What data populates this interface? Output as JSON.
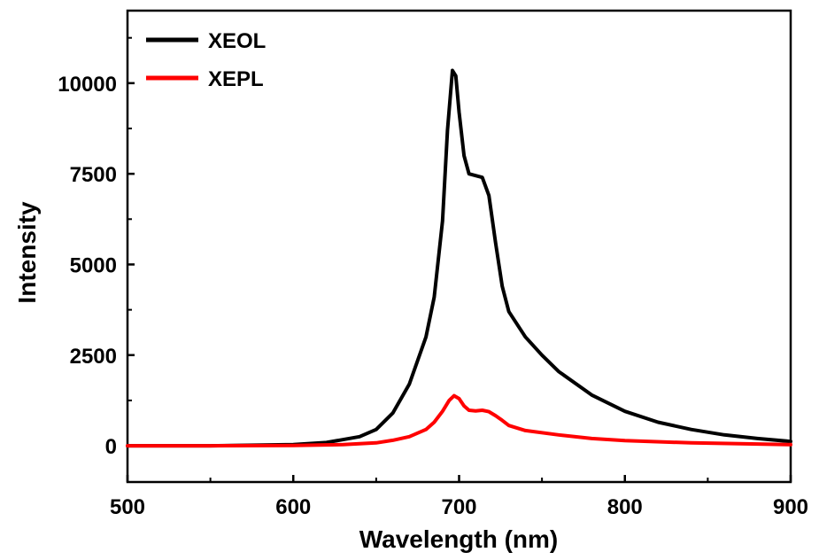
{
  "chart_data": {
    "type": "line",
    "title": "",
    "xlabel": "Wavelength (nm)",
    "ylabel": "Intensity",
    "xlim": [
      500,
      900
    ],
    "ylim": [
      -1000,
      12000
    ],
    "xticks": [
      500,
      600,
      700,
      800,
      900
    ],
    "yticks": [
      0,
      2500,
      5000,
      7500,
      10000
    ],
    "grid": false,
    "legend_position": "top-left",
    "series": [
      {
        "name": "XEOL",
        "color": "#000000",
        "x": [
          500,
          550,
          600,
          620,
          640,
          650,
          660,
          670,
          680,
          685,
          690,
          693,
          696,
          698,
          700,
          703,
          706,
          710,
          714,
          718,
          722,
          726,
          730,
          740,
          750,
          760,
          780,
          800,
          820,
          840,
          860,
          880,
          900
        ],
        "y": [
          0,
          0,
          30,
          90,
          250,
          450,
          900,
          1700,
          3000,
          4100,
          6200,
          8700,
          10350,
          10200,
          9200,
          8000,
          7500,
          7450,
          7400,
          6900,
          5600,
          4400,
          3700,
          3000,
          2500,
          2050,
          1400,
          950,
          650,
          450,
          300,
          200,
          120
        ]
      },
      {
        "name": "XEPL",
        "color": "#ff0000",
        "x": [
          500,
          550,
          600,
          630,
          650,
          660,
          670,
          680,
          685,
          690,
          694,
          697,
          700,
          703,
          706,
          710,
          714,
          718,
          722,
          726,
          730,
          740,
          760,
          780,
          800,
          840,
          900
        ],
        "y": [
          0,
          0,
          10,
          30,
          80,
          150,
          250,
          450,
          650,
          950,
          1250,
          1380,
          1300,
          1100,
          980,
          960,
          980,
          940,
          830,
          700,
          560,
          420,
          300,
          200,
          140,
          80,
          30
        ]
      }
    ]
  }
}
